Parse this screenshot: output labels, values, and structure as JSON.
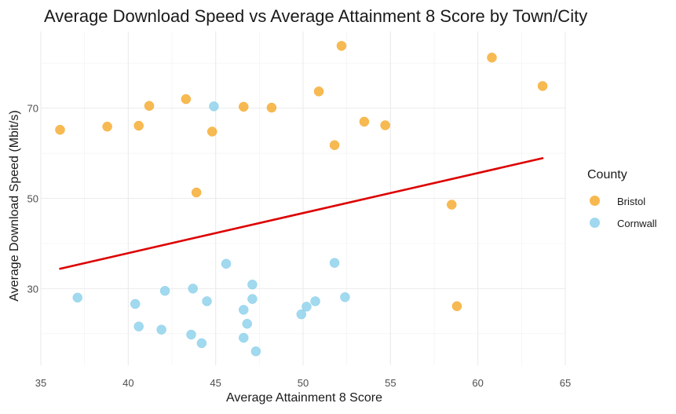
{
  "chart_data": {
    "type": "scatter",
    "title": "Average Download Speed vs Average Attainment 8 Score by Town/City",
    "xlabel": "Average Attainment 8 Score",
    "ylabel": "Average Download Speed (Mbit/s)",
    "xlim": [
      35,
      65
    ],
    "ylim": [
      13,
      87
    ],
    "x_ticks": [
      35,
      40,
      45,
      50,
      55,
      60,
      65
    ],
    "y_ticks": [
      30,
      50,
      70
    ],
    "grid": true,
    "legend": {
      "title": "County",
      "placement": "right"
    },
    "series": [
      {
        "name": "Bristol",
        "color": "#F5A623",
        "points": [
          [
            36.1,
            65.2
          ],
          [
            38.8,
            65.9
          ],
          [
            40.6,
            66.1
          ],
          [
            41.2,
            70.5
          ],
          [
            43.3,
            72.0
          ],
          [
            43.9,
            51.3
          ],
          [
            44.8,
            64.8
          ],
          [
            46.6,
            70.3
          ],
          [
            48.2,
            70.1
          ],
          [
            50.9,
            73.7
          ],
          [
            51.8,
            61.8
          ],
          [
            52.2,
            83.8
          ],
          [
            53.5,
            67.0
          ],
          [
            54.7,
            66.2
          ],
          [
            58.5,
            48.6
          ],
          [
            58.8,
            26.1
          ],
          [
            60.8,
            81.2
          ],
          [
            63.7,
            74.9
          ]
        ]
      },
      {
        "name": "Cornwall",
        "color": "#87CEEB",
        "points": [
          [
            37.1,
            28.0
          ],
          [
            40.4,
            26.6
          ],
          [
            40.6,
            21.6
          ],
          [
            41.9,
            20.9
          ],
          [
            42.1,
            29.5
          ],
          [
            43.6,
            19.8
          ],
          [
            43.7,
            30.0
          ],
          [
            44.2,
            17.9
          ],
          [
            44.5,
            27.2
          ],
          [
            44.9,
            70.4
          ],
          [
            45.6,
            35.5
          ],
          [
            46.6,
            19.1
          ],
          [
            46.6,
            25.3
          ],
          [
            46.8,
            22.2
          ],
          [
            47.1,
            30.9
          ],
          [
            47.1,
            27.7
          ],
          [
            47.3,
            16.1
          ],
          [
            49.9,
            24.3
          ],
          [
            50.2,
            26.0
          ],
          [
            50.7,
            27.2
          ],
          [
            51.8,
            35.7
          ],
          [
            52.4,
            28.1
          ]
        ]
      }
    ],
    "trendline": {
      "color": "#DD0000",
      "x": [
        36.1,
        63.7
      ],
      "y": [
        34.4,
        58.9
      ]
    }
  }
}
